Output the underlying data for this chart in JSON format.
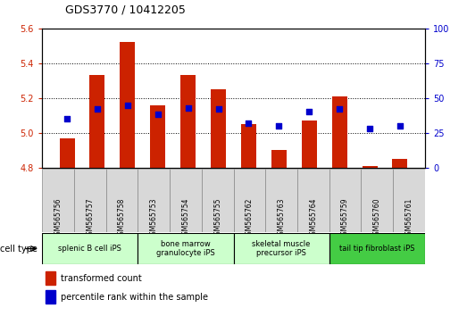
{
  "title": "GDS3770 / 10412205",
  "samples": [
    "GSM565756",
    "GSM565757",
    "GSM565758",
    "GSM565753",
    "GSM565754",
    "GSM565755",
    "GSM565762",
    "GSM565763",
    "GSM565764",
    "GSM565759",
    "GSM565760",
    "GSM565761"
  ],
  "red_values": [
    4.97,
    5.33,
    5.52,
    5.16,
    5.33,
    5.25,
    5.05,
    4.9,
    5.07,
    5.21,
    4.81,
    4.85
  ],
  "blue_values": [
    35,
    42,
    45,
    38,
    43,
    42,
    32,
    30,
    40,
    42,
    28,
    30
  ],
  "ylim_left": [
    4.8,
    5.6
  ],
  "ylim_right": [
    0,
    100
  ],
  "yticks_left": [
    4.8,
    5.0,
    5.2,
    5.4,
    5.6
  ],
  "yticks_right": [
    0,
    25,
    50,
    75,
    100
  ],
  "bar_color": "#cc2200",
  "dot_color": "#0000cc",
  "cell_types": [
    {
      "label": "splenic B cell iPS",
      "start": 0,
      "end": 3,
      "color": "#ccffcc"
    },
    {
      "label": "bone marrow\ngranulocyte iPS",
      "start": 3,
      "end": 6,
      "color": "#ccffcc"
    },
    {
      "label": "skeletal muscle\nprecursor iPS",
      "start": 6,
      "end": 9,
      "color": "#ccffcc"
    },
    {
      "label": "tail tip fibroblast iPS",
      "start": 9,
      "end": 12,
      "color": "#44cc44"
    }
  ],
  "legend_red": "transformed count",
  "legend_blue": "percentile rank within the sample",
  "cell_type_label": "cell type",
  "bar_width": 0.5,
  "sample_box_color": "#d8d8d8",
  "sample_box_edge": "#aaaaaa"
}
